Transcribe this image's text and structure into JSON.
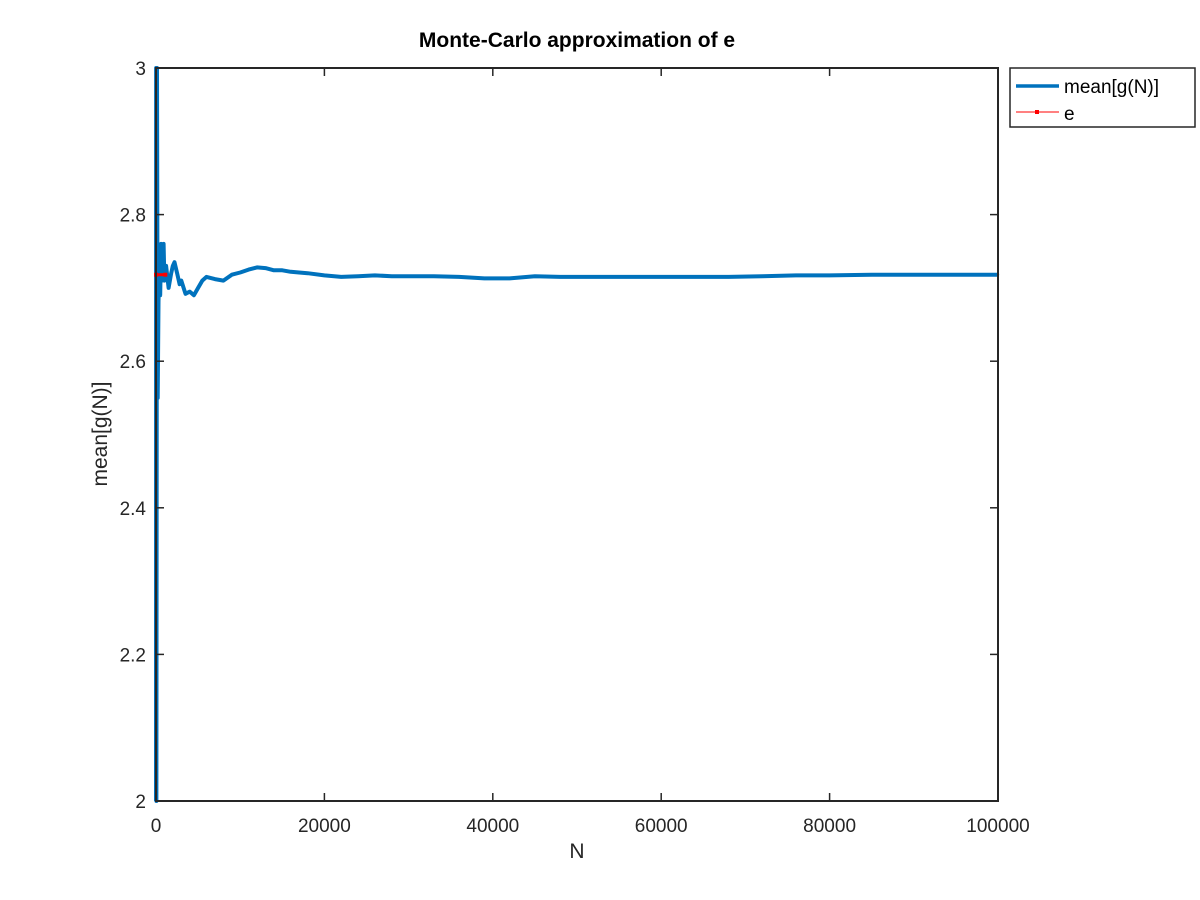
{
  "chart_data": {
    "type": "line",
    "title": "Monte-Carlo approximation of e",
    "xlabel": "N",
    "ylabel": "mean[g(N)]",
    "xlim": [
      0,
      100000
    ],
    "ylim": [
      2,
      3
    ],
    "x_ticks": [
      "0",
      "20000",
      "40000",
      "60000",
      "80000",
      "100000"
    ],
    "y_ticks": [
      "2",
      "2.2",
      "2.4",
      "2.6",
      "2.8",
      "3"
    ],
    "x_tick_values": [
      0,
      20000,
      40000,
      60000,
      80000,
      100000
    ],
    "y_tick_values": [
      2,
      2.2,
      2.4,
      2.6,
      2.8,
      3
    ],
    "grid": false,
    "legend_position": "outside-top-right",
    "series": [
      {
        "name": "mean[g(N)]",
        "color": "#0072bd",
        "style": "solid-thick",
        "points": [
          [
            1,
            2.0
          ],
          [
            10,
            3.0
          ],
          [
            50,
            2.0
          ],
          [
            120,
            3.0
          ],
          [
            200,
            2.55
          ],
          [
            300,
            2.68
          ],
          [
            400,
            2.74
          ],
          [
            500,
            2.69
          ],
          [
            600,
            2.76
          ],
          [
            700,
            2.71
          ],
          [
            800,
            2.73
          ],
          [
            900,
            2.76
          ],
          [
            1000,
            2.71
          ],
          [
            1200,
            2.73
          ],
          [
            1500,
            2.7
          ],
          [
            1800,
            2.72
          ],
          [
            2000,
            2.73
          ],
          [
            2200,
            2.735
          ],
          [
            2500,
            2.72
          ],
          [
            2800,
            2.705
          ],
          [
            3000,
            2.71
          ],
          [
            3500,
            2.692
          ],
          [
            4000,
            2.695
          ],
          [
            4500,
            2.69
          ],
          [
            5000,
            2.7
          ],
          [
            5500,
            2.71
          ],
          [
            6000,
            2.715
          ],
          [
            7000,
            2.712
          ],
          [
            8000,
            2.71
          ],
          [
            9000,
            2.718
          ],
          [
            10000,
            2.721
          ],
          [
            11000,
            2.725
          ],
          [
            12000,
            2.728
          ],
          [
            13000,
            2.727
          ],
          [
            14000,
            2.724
          ],
          [
            15000,
            2.724
          ],
          [
            16000,
            2.722
          ],
          [
            17000,
            2.721
          ],
          [
            18000,
            2.72
          ],
          [
            20000,
            2.717
          ],
          [
            22000,
            2.715
          ],
          [
            24000,
            2.716
          ],
          [
            26000,
            2.717
          ],
          [
            28000,
            2.716
          ],
          [
            30000,
            2.716
          ],
          [
            33000,
            2.716
          ],
          [
            36000,
            2.715
          ],
          [
            39000,
            2.713
          ],
          [
            42000,
            2.713
          ],
          [
            45000,
            2.716
          ],
          [
            48000,
            2.715
          ],
          [
            52000,
            2.715
          ],
          [
            56000,
            2.715
          ],
          [
            60000,
            2.715
          ],
          [
            64000,
            2.715
          ],
          [
            68000,
            2.715
          ],
          [
            72000,
            2.716
          ],
          [
            76000,
            2.717
          ],
          [
            80000,
            2.717
          ],
          [
            85000,
            2.718
          ],
          [
            90000,
            2.718
          ],
          [
            95000,
            2.718
          ],
          [
            100000,
            2.718
          ]
        ]
      },
      {
        "name": "e",
        "color": "#ff0000",
        "style": "solid-thin-with-markers",
        "points": [
          [
            0,
            2.718
          ],
          [
            1100,
            2.718
          ]
        ]
      }
    ]
  }
}
